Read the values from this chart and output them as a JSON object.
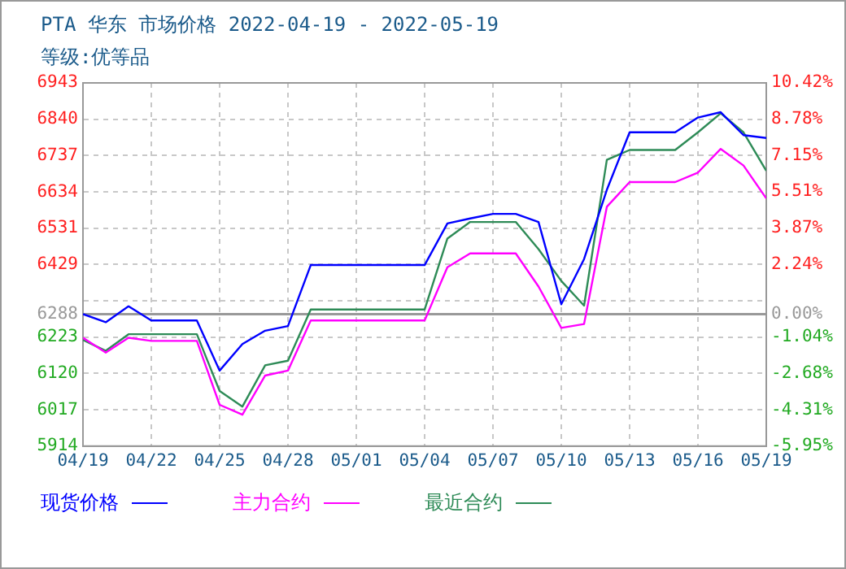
{
  "chart_data": {
    "type": "line",
    "title": "PTA 华东 市场价格 2022-04-19 - 2022-05-19",
    "subtitle": "等级:优等品",
    "x": [
      "2022-04-19",
      "2022-04-20",
      "2022-04-21",
      "2022-04-22",
      "2022-04-23",
      "2022-04-24",
      "2022-04-25",
      "2022-04-26",
      "2022-04-27",
      "2022-04-28",
      "2022-04-29",
      "2022-04-30",
      "2022-05-01",
      "2022-05-02",
      "2022-05-03",
      "2022-05-04",
      "2022-05-05",
      "2022-05-06",
      "2022-05-07",
      "2022-05-08",
      "2022-05-09",
      "2022-05-10",
      "2022-05-11",
      "2022-05-12",
      "2022-05-13",
      "2022-05-14",
      "2022-05-15",
      "2022-05-16",
      "2022-05-17",
      "2022-05-18",
      "2022-05-19"
    ],
    "series": [
      {
        "name": "现货价格",
        "color": "#0000ff",
        "values": [
          6288,
          6265,
          6310,
          6270,
          6270,
          6270,
          6128,
          6203,
          6241,
          6254,
          6427,
          6427,
          6427,
          6427,
          6427,
          6427,
          6545,
          6559,
          6572,
          6572,
          6549,
          6316,
          6444,
          6640,
          6803,
          6803,
          6803,
          6845,
          6860,
          6795,
          6787
        ]
      },
      {
        "name": "主力合约",
        "color": "#ff00ff",
        "values": [
          6221,
          6179,
          6221,
          6212,
          6212,
          6212,
          6031,
          6003,
          6114,
          6128,
          6270,
          6270,
          6270,
          6270,
          6270,
          6270,
          6421,
          6460,
          6460,
          6460,
          6366,
          6249,
          6260,
          6592,
          6662,
          6662,
          6662,
          6689,
          6756,
          6709,
          6616
        ]
      },
      {
        "name": "最近合约",
        "color": "#2e8b57",
        "values": [
          6215,
          6184,
          6231,
          6231,
          6231,
          6231,
          6070,
          6026,
          6143,
          6156,
          6301,
          6301,
          6301,
          6301,
          6301,
          6301,
          6502,
          6549,
          6549,
          6549,
          6472,
          6382,
          6312,
          6725,
          6753,
          6753,
          6753,
          6803,
          6857,
          6803,
          6694
        ]
      }
    ],
    "xlim": [
      "2022-04-19",
      "2022-05-19"
    ],
    "xticks": [
      {
        "value": "2022-04-19",
        "label": "04/19"
      },
      {
        "value": "2022-04-22",
        "label": "04/22"
      },
      {
        "value": "2022-04-25",
        "label": "04/25"
      },
      {
        "value": "2022-04-28",
        "label": "04/28"
      },
      {
        "value": "2022-05-01",
        "label": "05/01"
      },
      {
        "value": "2022-05-04",
        "label": "05/04"
      },
      {
        "value": "2022-05-07",
        "label": "05/07"
      },
      {
        "value": "2022-05-10",
        "label": "05/10"
      },
      {
        "value": "2022-05-13",
        "label": "05/13"
      },
      {
        "value": "2022-05-16",
        "label": "05/16"
      },
      {
        "value": "2022-05-19",
        "label": "05/19"
      }
    ],
    "ylim": [
      5914,
      6943
    ],
    "yticks": [
      5914,
      6017,
      6120,
      6223,
      6288,
      {
        "value": 6326,
        "label": null
      },
      6429,
      6531,
      6634,
      6737,
      6840,
      6943
    ],
    "y2lim": [
      -5.95,
      10.42
    ],
    "y2ticks": [
      {
        "value": -5.95,
        "label": "-5.95%"
      },
      {
        "value": -4.31,
        "label": "-4.31%"
      },
      {
        "value": -2.68,
        "label": "-2.68%"
      },
      {
        "value": -1.04,
        "label": "-1.04%"
      },
      {
        "value": 0,
        "label": "0.00%"
      },
      {
        "value": 2.24,
        "label": "2.24%"
      },
      {
        "value": 3.87,
        "label": "3.87%"
      },
      {
        "value": 5.51,
        "label": "5.51%"
      },
      {
        "value": 7.15,
        "label": "7.15%"
      },
      {
        "value": 8.78,
        "label": "8.78%"
      },
      {
        "value": 10.42,
        "label": "10.42%"
      }
    ],
    "ref_lines": [
      {
        "axis": "y",
        "value": 6288,
        "color": "#999999"
      }
    ],
    "grid": true,
    "legend": "bottom",
    "marker": "none",
    "line_style": "solid"
  }
}
